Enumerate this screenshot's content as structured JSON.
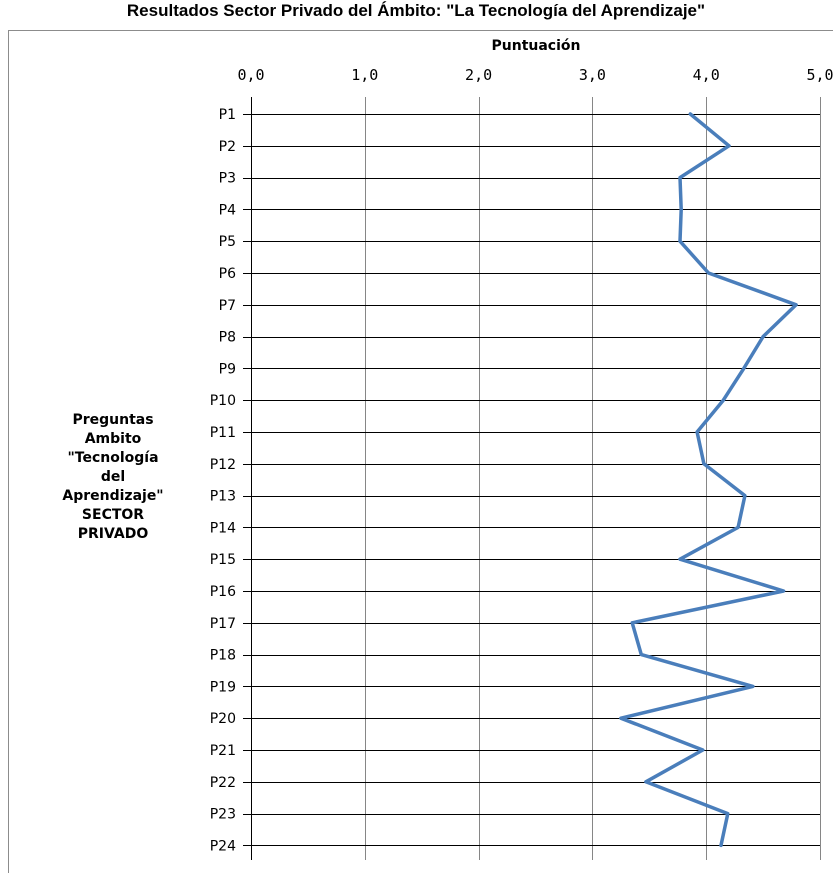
{
  "chart_data": {
    "type": "line",
    "title": "Resultados Sector Privado del Ámbito: \"La Tecnología del Aprendizaje\"",
    "xlabel": "Puntuación",
    "ylabel": "Preguntas Ambito \"Tecnología del Aprendizaje\" SECTOR PRIVADO",
    "ylabel_lines": [
      "Preguntas",
      "Ambito",
      "\"Tecnología",
      "del",
      "Aprendizaje\"",
      "SECTOR",
      "PRIVADO"
    ],
    "xlim": [
      0,
      5
    ],
    "xticks": [
      "0,0",
      "1,0",
      "2,0",
      "3,0",
      "4,0",
      "5,0"
    ],
    "grid": true,
    "orientation": "horizontal",
    "categories": [
      "P1",
      "P2",
      "P3",
      "P4",
      "P5",
      "P6",
      "P7",
      "P8",
      "P9",
      "P10",
      "P11",
      "P12",
      "P13",
      "P14",
      "P15",
      "P16",
      "P17",
      "P18",
      "P19",
      "P20",
      "P21",
      "P22",
      "P23",
      "P24"
    ],
    "values": [
      3.86,
      4.2,
      3.77,
      3.78,
      3.77,
      4.02,
      4.79,
      4.5,
      4.33,
      4.15,
      3.92,
      3.98,
      4.34,
      4.28,
      3.77,
      4.68,
      3.35,
      3.43,
      4.41,
      3.25,
      3.97,
      3.47,
      4.19,
      4.13
    ],
    "series_color": "#4a7ebb"
  }
}
